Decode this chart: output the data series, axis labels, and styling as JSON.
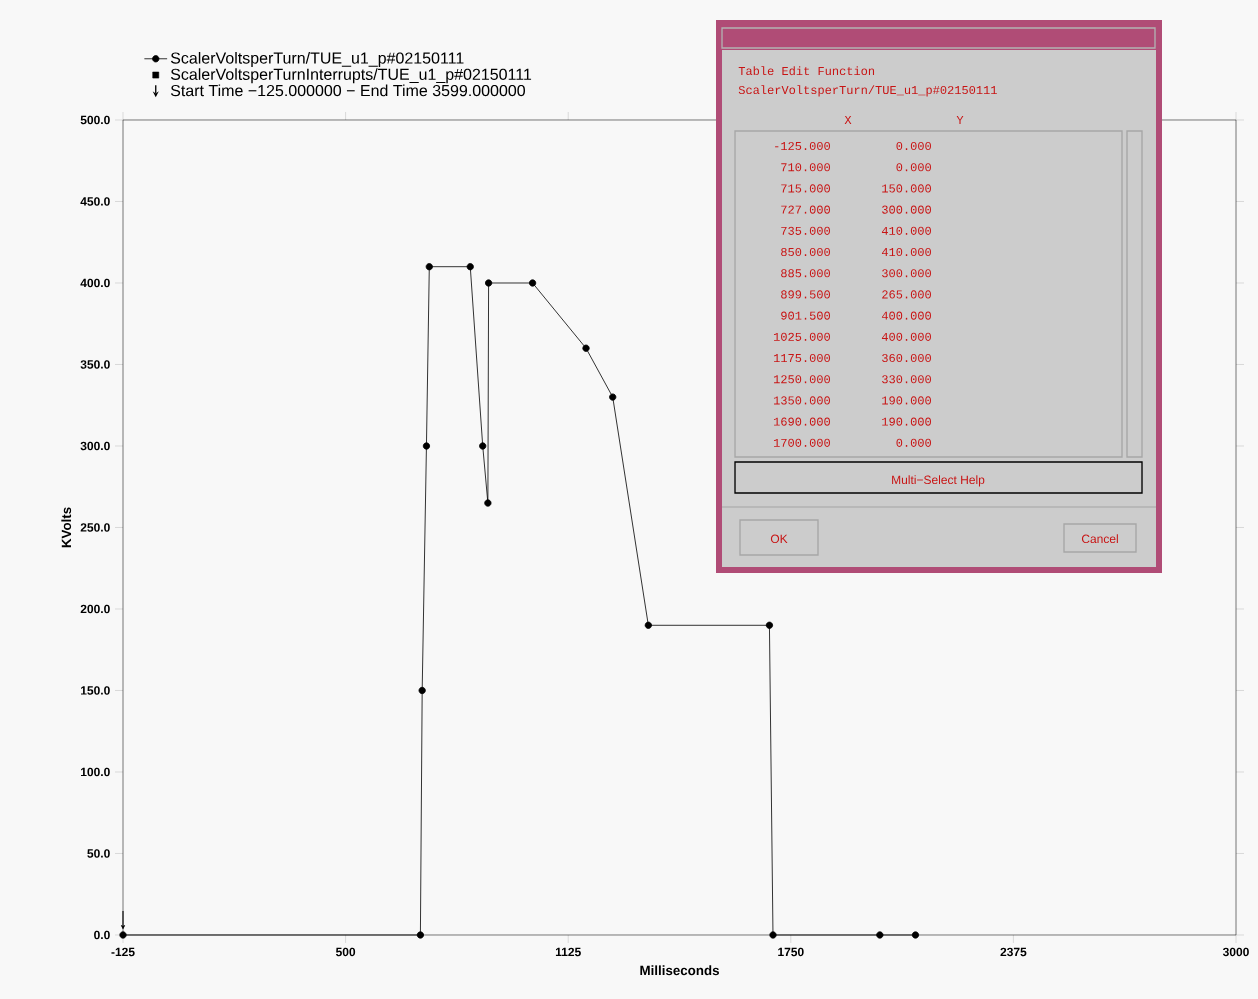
{
  "chart_data": [
    {
      "type": "line",
      "xlabel": "Milliseconds",
      "ylabel": "KVolts",
      "x": [
        -125,
        710,
        715,
        727,
        735,
        850,
        885,
        899.5,
        901.5,
        1025,
        1175,
        1250,
        1350,
        1690,
        1700,
        2000,
        2100
      ],
      "series": [
        {
          "name": "ScalerVoltsperTurn/TUE_u1_p#02150111",
          "color": "#000000",
          "values": [
            0,
            0,
            150,
            300,
            410,
            410,
            300,
            265,
            400,
            400,
            360,
            330,
            190,
            190,
            0,
            0,
            0
          ]
        }
      ],
      "xlim": [
        -125,
        3000
      ],
      "xticks": [
        -125,
        500,
        1125,
        1750,
        2375,
        3000
      ],
      "ylim": [
        0,
        500
      ],
      "yticks": [
        {
          "value": 0,
          "label": "0.0"
        },
        {
          "value": 50,
          "label": "50.0"
        },
        {
          "value": 100,
          "label": "100.0"
        },
        {
          "value": 150,
          "label": "150.0"
        },
        {
          "value": 200,
          "label": "200.0"
        },
        {
          "value": 250,
          "label": "250.0"
        },
        {
          "value": 300,
          "label": "300.0"
        },
        {
          "value": 350,
          "label": "350.0"
        },
        {
          "value": 400,
          "label": "400.0"
        },
        {
          "value": 450,
          "label": "450.0"
        },
        {
          "value": 500,
          "label": "500.0"
        }
      ],
      "marker": "circle",
      "line_style": "solid",
      "legend": "top left",
      "annotations": [
        "ScalerVoltsperTurnInterrupts/TUE_u1_p#02150111",
        "Start Time −125.000000 − End Time 3599.000000"
      ]
    },
    {
      "type": "other",
      "title": "Table Edit Function",
      "subtitle": "ScalerVoltsperTurn/TUE_u1_p#02150111",
      "annotations": [
        "X",
        "Y",
        "-125.000",
        "0.000",
        "710.000",
        "0.000",
        "715.000",
        "150.000",
        "727.000",
        "300.000",
        "735.000",
        "410.000",
        "850.000",
        "410.000",
        "885.000",
        "300.000",
        "899.500",
        "265.000",
        "901.500",
        "400.000",
        "1025.000",
        "400.000",
        "1175.000",
        "360.000",
        "1250.000",
        "330.000",
        "1350.000",
        "190.000",
        "1690.000",
        "190.000",
        "1700.000",
        "0.000",
        "Multi−Select Help",
        "OK",
        "Cancel"
      ]
    }
  ]
}
